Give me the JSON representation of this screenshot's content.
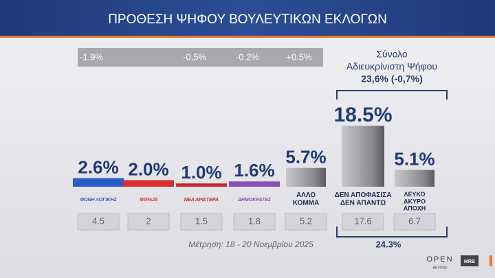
{
  "header": {
    "title": "ΠΡΟΘΕΣΗ ΨΗΦΟΥ ΒΟΥΛΕΥΤΙΚΩΝ ΕΚΛΟΓΩΝ"
  },
  "chart_data": {
    "type": "bar",
    "categories": [
      "ΦΩΝΗ ΛΟΓΙΚΗΣ",
      "ΜέΡΑ25",
      "ΝΕΑ ΑΡΙΣΤΕΡΑ",
      "ΔΗΜΟΚΡΑΤΕΣ",
      "ΑΛΛΟ\nΚΟΜΜΑ",
      "ΔΕΝ ΑΠΟΦΑΣΙΣΑ\nΔΕΝ ΑΠΑΝΤΩ",
      "ΛΕΥΚΟ\nΑΚΥΡΟ\nΑΠΟΧΗ"
    ],
    "values": [
      2.6,
      2.0,
      1.0,
      1.6,
      5.7,
      18.5,
      5.1
    ],
    "value_labels": [
      "2.6%",
      "2.0%",
      "1.0%",
      "1.6%",
      "5.7%",
      "18.5%",
      "5.1%"
    ],
    "colors": [
      "#2a5cc8",
      "#d8302c",
      "#c8282a",
      "#8a50b4",
      "#8a8a8e",
      "#8a8a8e",
      "#8a8a8e"
    ],
    "previous_values": [
      4.5,
      2,
      1.5,
      1.8,
      5.2,
      17.6,
      6.7
    ],
    "changes": [
      -1.9,
      null,
      -0.5,
      -0.2,
      0.5,
      null,
      null
    ],
    "change_labels": [
      "-1.9%",
      null,
      "-0,5%",
      "-0.2%",
      "+0.5%",
      null,
      null
    ],
    "undecided_box": {
      "title": "Σύνολο",
      "subtitle": "Αδιευκρίνιστη Ψήφου",
      "value_label": "23,6% (-0,7%)"
    },
    "bracket_total": "24.3%",
    "footnote": "Μέτρηση: 18 - 20 Νοεμβρίου 2025"
  },
  "branding": {
    "channel": "OPEN",
    "tagline": "BEYOND",
    "pollster": "MRB"
  }
}
